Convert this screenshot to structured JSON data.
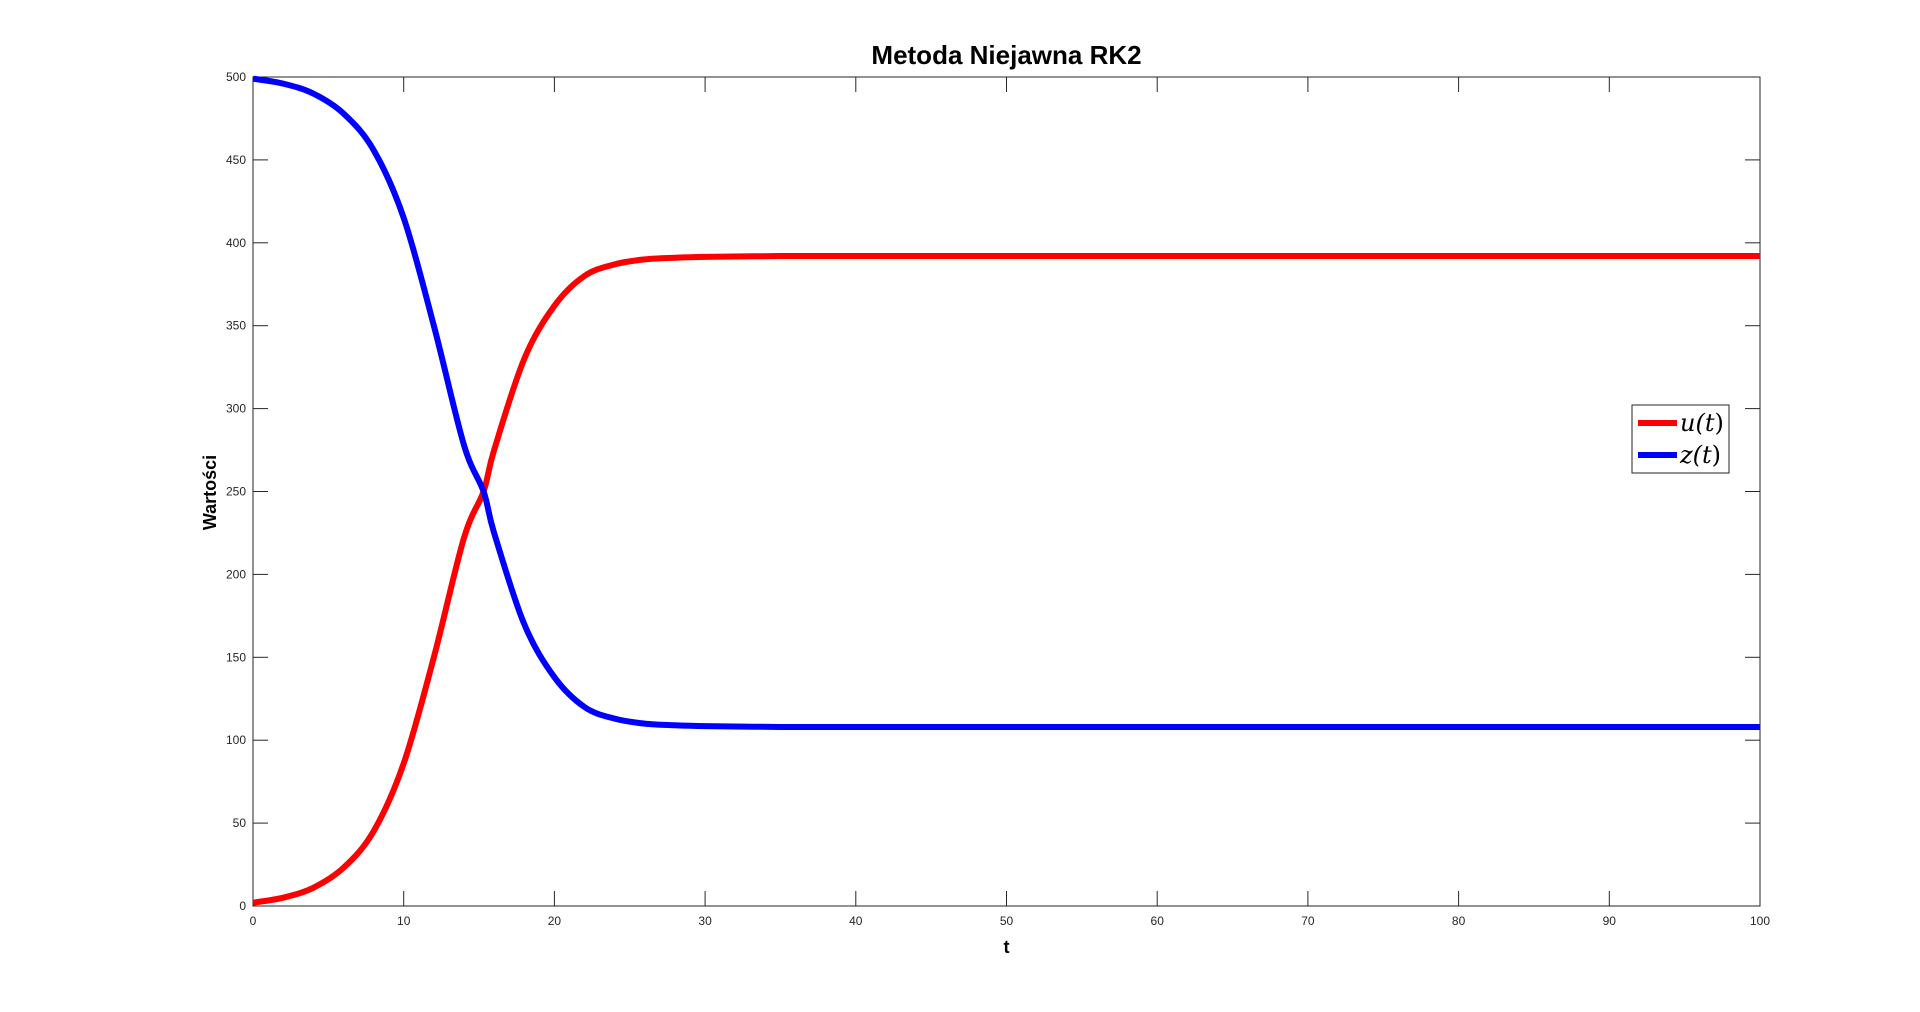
{
  "chart_data": {
    "type": "line",
    "title": "Metoda Niejawna RK2",
    "xlabel": "t",
    "ylabel": "Wartości",
    "xlim": [
      0,
      100
    ],
    "ylim": [
      0,
      500
    ],
    "xticks": [
      0,
      10,
      20,
      30,
      40,
      50,
      60,
      70,
      80,
      90,
      100
    ],
    "yticks": [
      0,
      50,
      100,
      150,
      200,
      250,
      300,
      350,
      400,
      450,
      500
    ],
    "grid": false,
    "box": true,
    "legend_position": "right",
    "series": [
      {
        "name": "u(t)",
        "legend_parts": [
          "u(",
          "t",
          ")"
        ],
        "color": "#ff0000",
        "x": [
          0,
          2,
          4,
          6,
          8,
          10,
          12,
          14,
          15.3,
          16,
          18,
          20,
          22,
          24,
          26,
          28,
          30,
          35,
          40,
          50,
          60,
          70,
          80,
          90,
          100
        ],
        "y": [
          2,
          5,
          11,
          23,
          45,
          86,
          150,
          222,
          250,
          275,
          330,
          362,
          380,
          387,
          390,
          391,
          391.5,
          392,
          392,
          392,
          392,
          392,
          392,
          392,
          392
        ]
      },
      {
        "name": "z(t)",
        "legend_parts": [
          "z(",
          "t",
          ")"
        ],
        "color": "#0000ff",
        "x": [
          0,
          2,
          4,
          6,
          8,
          10,
          12,
          14,
          15.3,
          16,
          18,
          20,
          22,
          24,
          26,
          28,
          30,
          35,
          40,
          50,
          60,
          70,
          80,
          90,
          100
        ],
        "y": [
          499,
          496,
          490,
          478,
          456,
          415,
          350,
          278,
          250,
          225,
          170,
          138,
          120,
          113,
          110,
          109,
          108.5,
          108,
          108,
          108,
          108,
          108,
          108,
          108,
          108
        ]
      }
    ]
  }
}
